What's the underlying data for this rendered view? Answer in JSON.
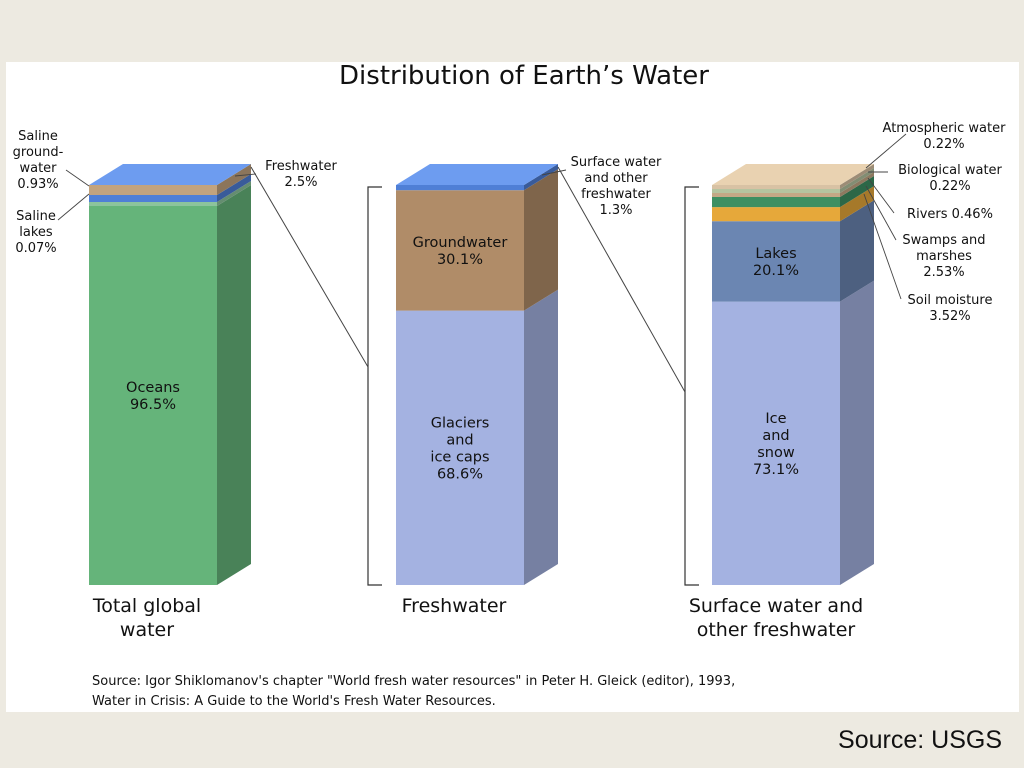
{
  "chart_data": {
    "type": "bar",
    "title": "Distribution of Earth’s Water",
    "stacked": true,
    "columns": [
      {
        "label": [
          "Total global",
          "water"
        ],
        "total": 100,
        "segments": [
          {
            "name": "Oceans",
            "value": 96.5,
            "display": [
              "Oceans",
              "96.5%"
            ],
            "color": "#65b47a"
          },
          {
            "name": "Saline lakes",
            "value": 0.07,
            "callout": [
              "Saline",
              "lakes",
              "0.07%"
            ],
            "color": "#8cc49c"
          },
          {
            "name": "Saline groundwater",
            "value": 0.93,
            "callout": [
              "Saline",
              "ground-",
              "water",
              "0.93%"
            ],
            "color": "#4f7fd6"
          },
          {
            "name": "Freshwater",
            "value": 2.5,
            "callout": [
              "Freshwater",
              "2.5%"
            ],
            "color": "#c2a37e"
          }
        ]
      },
      {
        "label": [
          "Freshwater"
        ],
        "total": 100,
        "segments": [
          {
            "name": "Glaciers and ice caps",
            "value": 68.6,
            "display": [
              "Glaciers",
              "and",
              "ice caps",
              "68.6%"
            ],
            "color": "#a4b2e1"
          },
          {
            "name": "Groundwater",
            "value": 30.1,
            "display": [
              "Groundwater",
              "30.1%"
            ],
            "color": "#b08c68"
          },
          {
            "name": "Surface water and other freshwater",
            "value": 1.3,
            "callout": [
              "Surface water",
              "and other",
              "freshwater",
              "1.3%"
            ],
            "color": "#4f7fd6"
          }
        ]
      },
      {
        "label": [
          "Surface water and",
          "other freshwater"
        ],
        "total": 100,
        "segments": [
          {
            "name": "Ice and snow",
            "value": 73.1,
            "display": [
              "Ice",
              "and",
              "snow",
              "73.1%"
            ],
            "color": "#a4b2e1"
          },
          {
            "name": "Lakes",
            "value": 20.1,
            "display": [
              "Lakes",
              "20.1%"
            ],
            "color": "#6b86b2"
          },
          {
            "name": "Soil moisture",
            "value": 3.52,
            "callout": [
              "Soil moisture",
              "3.52%"
            ],
            "color": "#e6a83a"
          },
          {
            "name": "Swamps and marshes",
            "value": 2.53,
            "callout": [
              "Swamps and",
              "marshes",
              "2.53%"
            ],
            "color": "#3d8f62"
          },
          {
            "name": "Rivers",
            "value": 0.46,
            "callout": [
              "Rivers  0.46%"
            ],
            "color": "#c4a886"
          },
          {
            "name": "Biological water",
            "value": 0.22,
            "callout": [
              "Biological water",
              "0.22%"
            ],
            "color": "#b5c4a0"
          },
          {
            "name": "Atmospheric water",
            "value": 0.22,
            "callout": [
              "Atmospheric water",
              "0.22%"
            ],
            "color": "#d8c2a4"
          }
        ]
      }
    ],
    "source_note": [
      "Source: Igor Shiklomanov's chapter \"World fresh water resources\" in Peter H. Gleick (editor), 1993,",
      "Water in Crisis: A Guide to the World's Fresh Water Resources."
    ]
  },
  "footer": {
    "credit": "Source: USGS"
  }
}
